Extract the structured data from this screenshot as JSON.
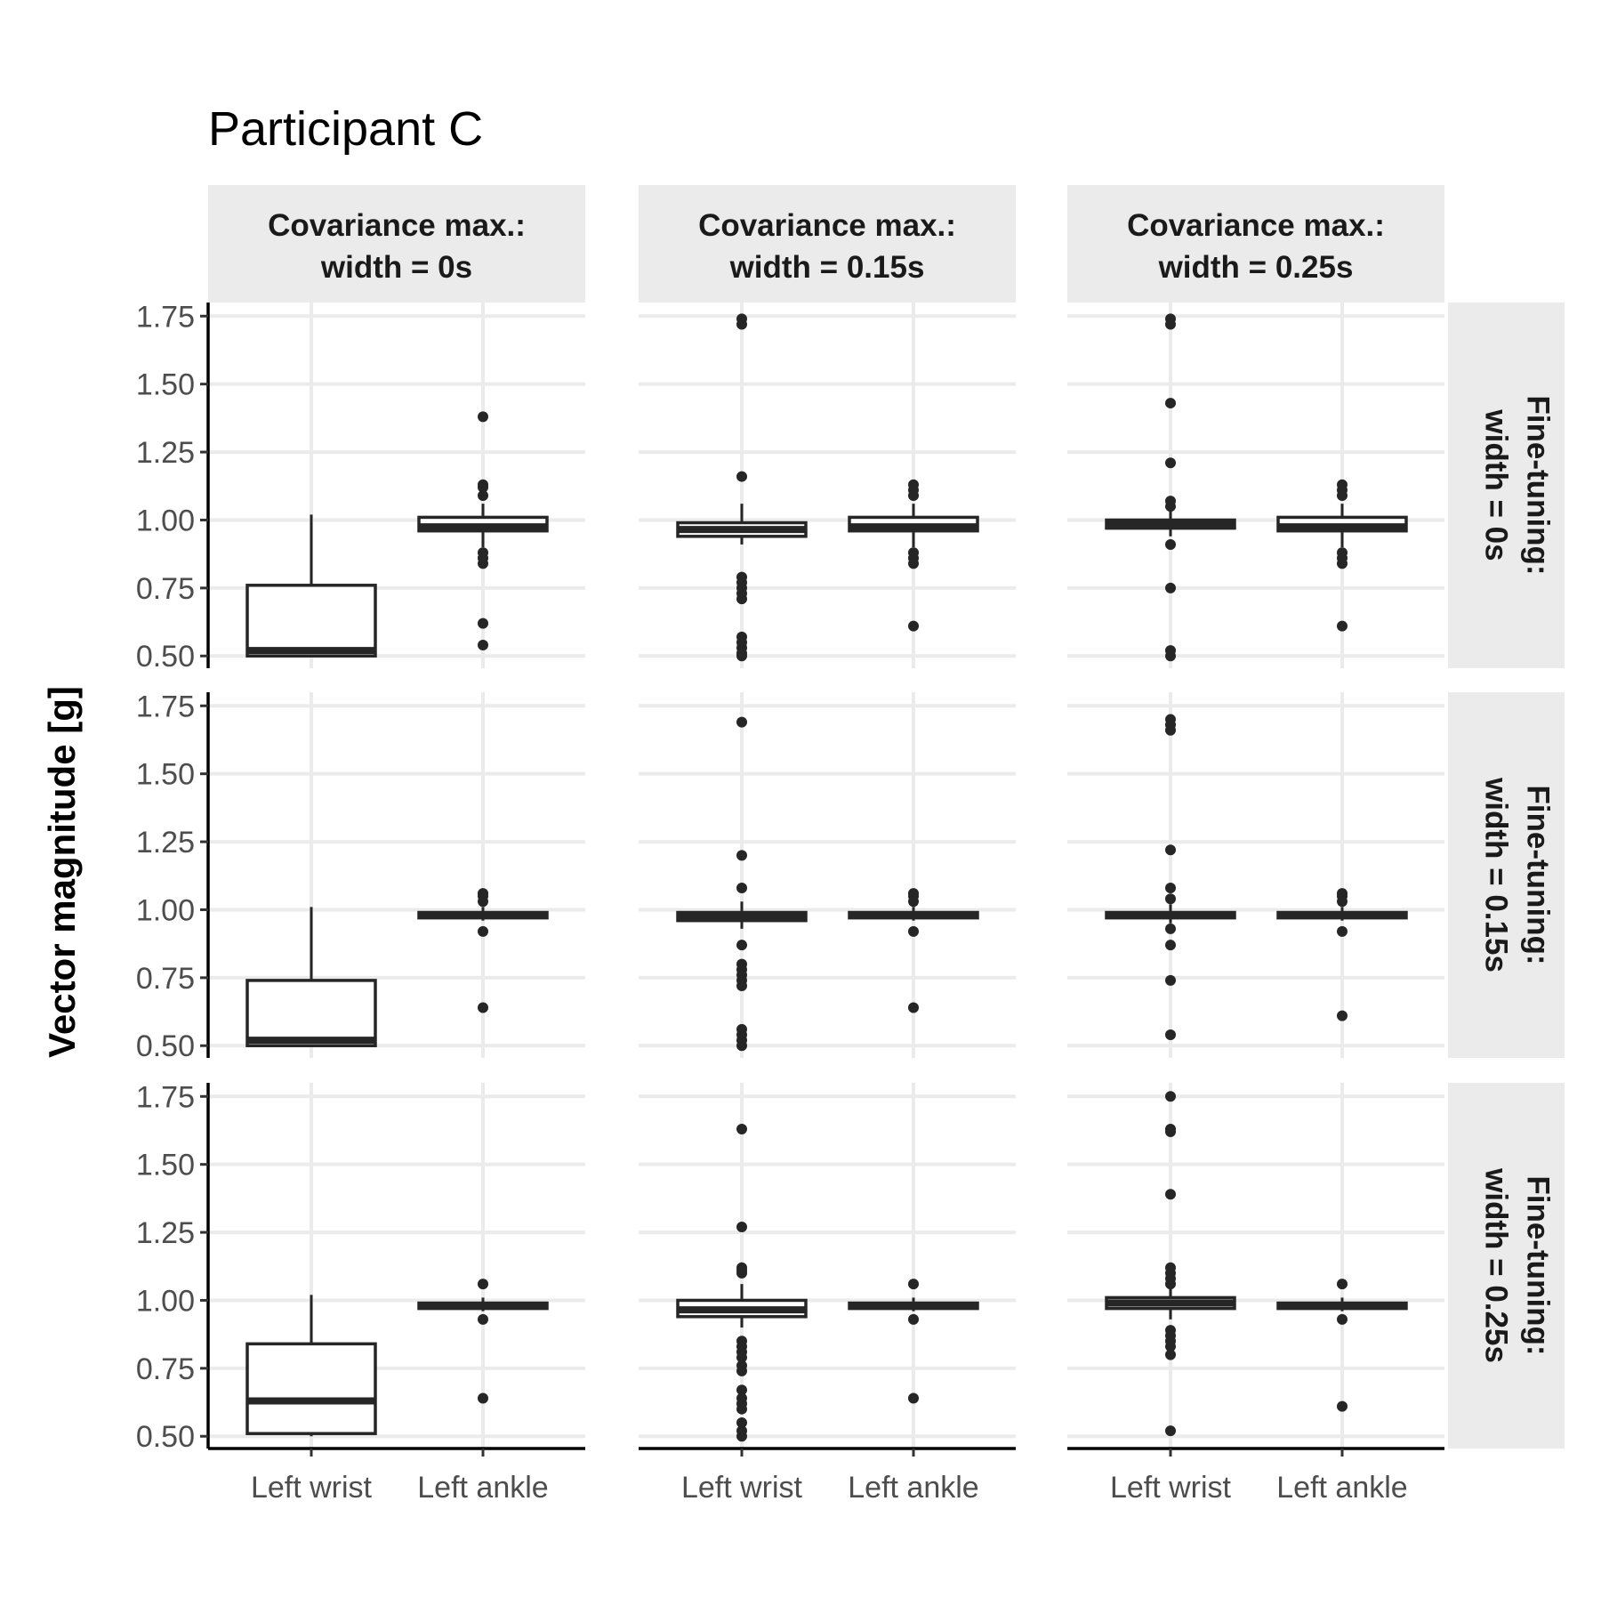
{
  "chart_data": {
    "type": "boxplot",
    "title": "Participant C",
    "ylabel": "Vector magnitude [g]",
    "xlabel": "",
    "categories": [
      "Left wrist",
      "Left ankle"
    ],
    "y_ticks": [
      "0.50",
      "0.75",
      "1.00",
      "1.25",
      "1.50",
      "1.75"
    ],
    "ylim": [
      0.455,
      1.8
    ],
    "col_facets": [
      "Covariance max.:\nwidth = 0s",
      "Covariance max.:\nwidth = 0.15s",
      "Covariance max.:\nwidth = 0.25s"
    ],
    "row_facets": [
      "Fine-tuning:\nwidth = 0s",
      "Fine-tuning:\nwidth = 0.15s",
      "Fine-tuning:\nwidth = 0.25s"
    ],
    "grid": true,
    "colors": {
      "strip_background": "#ebebeb",
      "grid": "#ebebeb",
      "box": "#262626",
      "axis": "#000000"
    },
    "panels": [
      [
        [
          {
            "q1": 0.5,
            "median": 0.52,
            "q3": 0.76,
            "whisker_low": 0.5,
            "whisker_high": 1.02,
            "outliers": []
          },
          {
            "q1": 0.96,
            "median": 0.975,
            "q3": 1.01,
            "whisker_low": 0.9,
            "whisker_high": 1.06,
            "outliers": [
              1.38,
              1.13,
              1.12,
              1.09,
              0.88,
              0.86,
              0.84,
              0.62,
              0.54
            ]
          }
        ],
        [
          {
            "q1": 0.94,
            "median": 0.965,
            "q3": 0.99,
            "whisker_low": 0.91,
            "whisker_high": 1.06,
            "outliers": [
              1.74,
              1.72,
              1.16,
              0.79,
              0.77,
              0.75,
              0.73,
              0.71,
              0.57,
              0.55,
              0.53,
              0.51,
              0.5
            ]
          },
          {
            "q1": 0.96,
            "median": 0.975,
            "q3": 1.01,
            "whisker_low": 0.9,
            "whisker_high": 1.06,
            "outliers": [
              1.13,
              1.11,
              1.09,
              0.88,
              0.86,
              0.84,
              0.61
            ]
          }
        ],
        [
          {
            "q1": 0.97,
            "median": 0.985,
            "q3": 1.0,
            "whisker_low": 0.94,
            "whisker_high": 1.04,
            "outliers": [
              1.74,
              1.72,
              1.43,
              1.21,
              1.07,
              1.05,
              0.91,
              0.75,
              0.52,
              0.5
            ]
          },
          {
            "q1": 0.96,
            "median": 0.975,
            "q3": 1.01,
            "whisker_low": 0.9,
            "whisker_high": 1.06,
            "outliers": [
              1.13,
              1.11,
              1.09,
              0.88,
              0.86,
              0.84,
              0.61
            ]
          }
        ]
      ],
      [
        [
          {
            "q1": 0.5,
            "median": 0.52,
            "q3": 0.74,
            "whisker_low": 0.5,
            "whisker_high": 1.01,
            "outliers": []
          },
          {
            "q1": 0.97,
            "median": 0.98,
            "q3": 0.99,
            "whisker_low": 0.96,
            "whisker_high": 1.01,
            "outliers": [
              1.06,
              1.05,
              1.03,
              0.92,
              0.64
            ]
          }
        ],
        [
          {
            "q1": 0.96,
            "median": 0.975,
            "q3": 0.99,
            "whisker_low": 0.93,
            "whisker_high": 1.03,
            "outliers": [
              1.69,
              1.2,
              1.08,
              0.87,
              0.8,
              0.78,
              0.76,
              0.74,
              0.72,
              0.56,
              0.54,
              0.52,
              0.5
            ]
          },
          {
            "q1": 0.97,
            "median": 0.98,
            "q3": 0.99,
            "whisker_low": 0.96,
            "whisker_high": 1.01,
            "outliers": [
              1.06,
              1.05,
              1.03,
              0.92,
              0.64
            ]
          }
        ],
        [
          {
            "q1": 0.97,
            "median": 0.98,
            "q3": 0.99,
            "whisker_low": 0.95,
            "whisker_high": 1.02,
            "outliers": [
              1.7,
              1.68,
              1.66,
              1.22,
              1.08,
              1.04,
              0.93,
              0.87,
              0.74,
              0.54
            ]
          },
          {
            "q1": 0.97,
            "median": 0.98,
            "q3": 0.99,
            "whisker_low": 0.96,
            "whisker_high": 1.01,
            "outliers": [
              1.06,
              1.05,
              1.03,
              0.92,
              0.61
            ]
          }
        ]
      ],
      [
        [
          {
            "q1": 0.51,
            "median": 0.63,
            "q3": 0.84,
            "whisker_low": 0.5,
            "whisker_high": 1.02,
            "outliers": []
          },
          {
            "q1": 0.97,
            "median": 0.98,
            "q3": 0.99,
            "whisker_low": 0.96,
            "whisker_high": 1.01,
            "outliers": [
              1.06,
              0.93,
              0.64
            ]
          }
        ],
        [
          {
            "q1": 0.94,
            "median": 0.965,
            "q3": 1.0,
            "whisker_low": 0.9,
            "whisker_high": 1.06,
            "outliers": [
              1.63,
              1.27,
              1.12,
              1.11,
              1.1,
              0.85,
              0.83,
              0.81,
              0.79,
              0.76,
              0.74,
              0.67,
              0.64,
              0.62,
              0.6,
              0.55,
              0.52,
              0.5
            ]
          },
          {
            "q1": 0.97,
            "median": 0.98,
            "q3": 0.99,
            "whisker_low": 0.96,
            "whisker_high": 1.01,
            "outliers": [
              1.06,
              0.93,
              0.64
            ]
          }
        ],
        [
          {
            "q1": 0.97,
            "median": 0.99,
            "q3": 1.01,
            "whisker_low": 0.93,
            "whisker_high": 1.05,
            "outliers": [
              1.75,
              1.63,
              1.62,
              1.39,
              1.12,
              1.1,
              1.08,
              1.06,
              0.89,
              0.87,
              0.85,
              0.83,
              0.8,
              0.52
            ]
          },
          {
            "q1": 0.97,
            "median": 0.98,
            "q3": 0.99,
            "whisker_low": 0.96,
            "whisker_high": 1.01,
            "outliers": [
              1.06,
              0.93,
              0.61
            ]
          }
        ]
      ]
    ]
  }
}
